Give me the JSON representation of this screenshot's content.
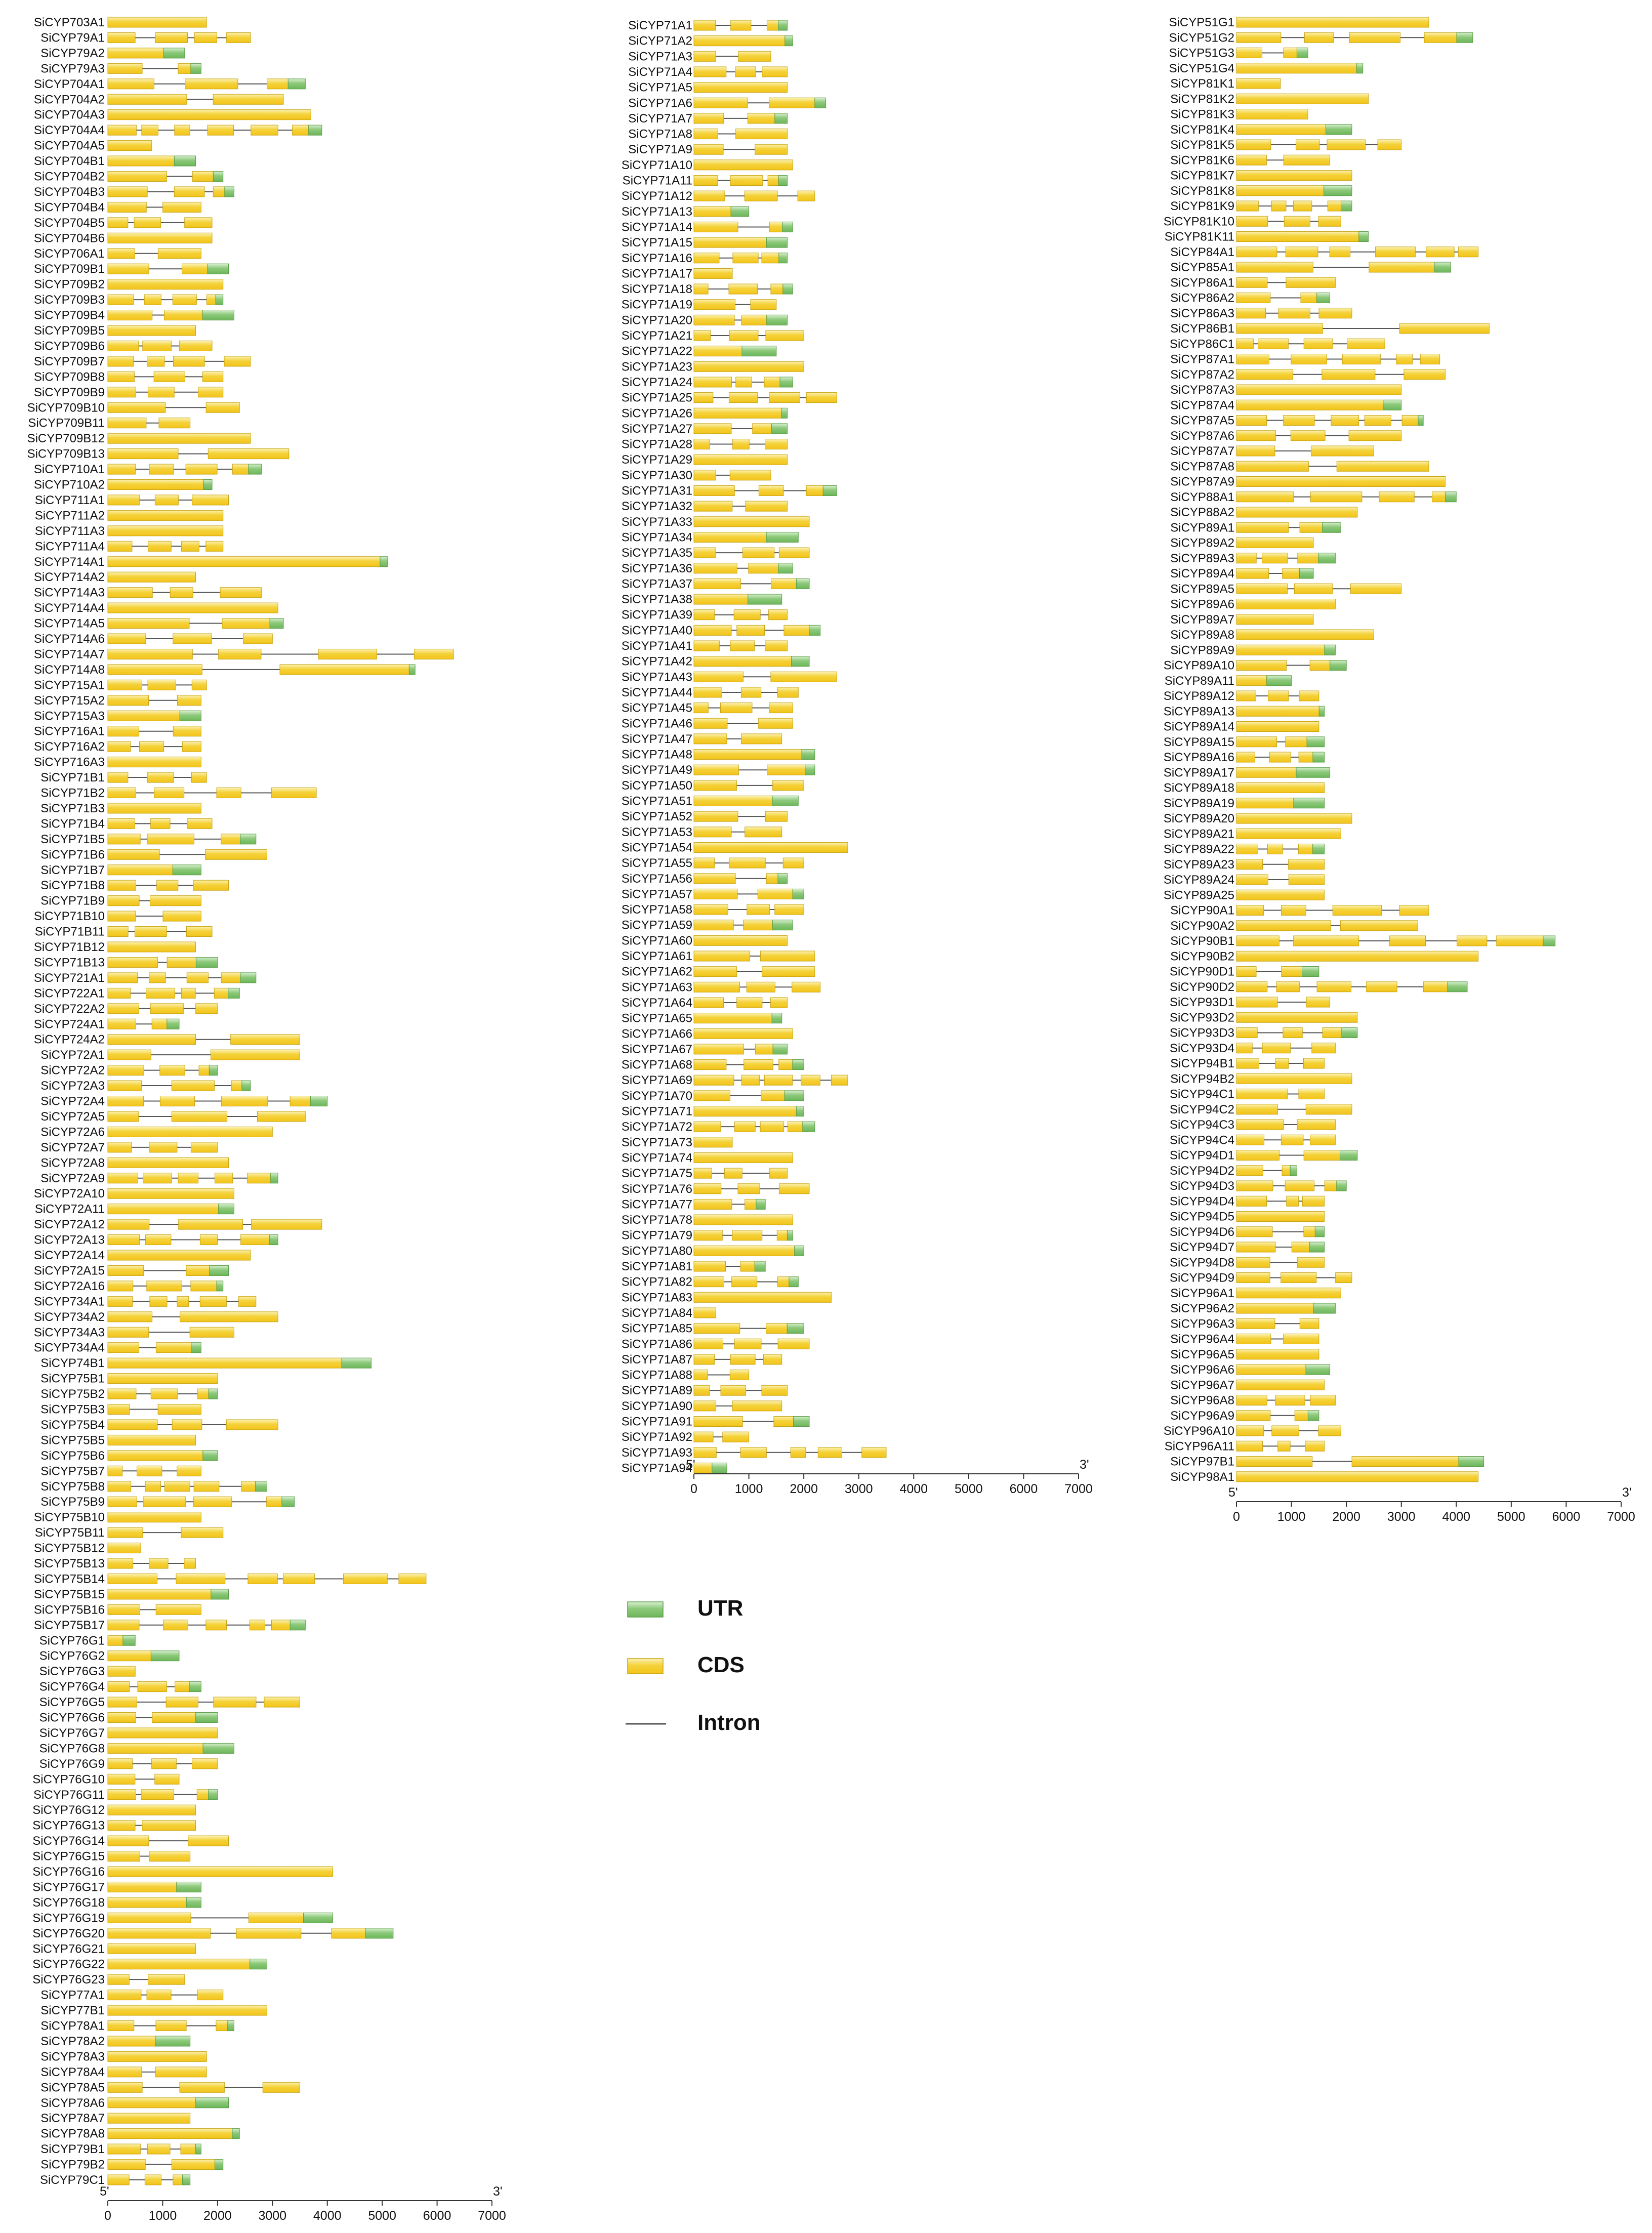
{
  "chart_data": {
    "type": "gene-structure",
    "columns": [
      {
        "genes": [
          "SiCYP703A1",
          "SiCYP79A1",
          "SiCYP79A2",
          "SiCYP79A3",
          "SiCYP704A1",
          "SiCYP704A2",
          "SiCYP704A3",
          "SiCYP704A4",
          "SiCYP704A5",
          "SiCYP704B1",
          "SiCYP704B2",
          "SiCYP704B3",
          "SiCYP704B4",
          "SiCYP704B5",
          "SiCYP704B6",
          "SiCYP706A1",
          "SiCYP709B1",
          "SiCYP709B2",
          "SiCYP709B3",
          "SiCYP709B4",
          "SiCYP709B5",
          "SiCYP709B6",
          "SiCYP709B7",
          "SiCYP709B8",
          "SiCYP709B9",
          "SiCYP709B10",
          "SiCYP709B11",
          "SiCYP709B12",
          "SiCYP709B13",
          "SiCYP710A1",
          "SiCYP710A2",
          "SiCYP711A1",
          "SiCYP711A2",
          "SiCYP711A3",
          "SiCYP711A4",
          "SiCYP714A1",
          "SiCYP714A2",
          "SiCYP714A3",
          "SiCYP714A4",
          "SiCYP714A5",
          "SiCYP714A6",
          "SiCYP714A7",
          "SiCYP714A8",
          "SiCYP715A1",
          "SiCYP715A2",
          "SiCYP715A3",
          "SiCYP716A1",
          "SiCYP716A2",
          "SiCYP716A3",
          "SiCYP71B1",
          "SiCYP71B2",
          "SiCYP71B3",
          "SiCYP71B4",
          "SiCYP71B5",
          "SiCYP71B6",
          "SiCYP71B7",
          "SiCYP71B8",
          "SiCYP71B9",
          "SiCYP71B10",
          "SiCYP71B11",
          "SiCYP71B12",
          "SiCYP71B13",
          "SiCYP721A1",
          "SiCYP722A1",
          "SiCYP722A2",
          "SiCYP724A1",
          "SiCYP724A2",
          "SiCYP72A1",
          "SiCYP72A2",
          "SiCYP72A3",
          "SiCYP72A4",
          "SiCYP72A5",
          "SiCYP72A6",
          "SiCYP72A7",
          "SiCYP72A8",
          "SiCYP72A9",
          "SiCYP72A10",
          "SiCYP72A11",
          "SiCYP72A12",
          "SiCYP72A13",
          "SiCYP72A14",
          "SiCYP72A15",
          "SiCYP72A16",
          "SiCYP734A1",
          "SiCYP734A2",
          "SiCYP734A3",
          "SiCYP734A4",
          "SiCYP74B1",
          "SiCYP75B1",
          "SiCYP75B2",
          "SiCYP75B3",
          "SiCYP75B4",
          "SiCYP75B5",
          "SiCYP75B6",
          "SiCYP75B7",
          "SiCYP75B8",
          "SiCYP75B9",
          "SiCYP75B10",
          "SiCYP75B11",
          "SiCYP75B12",
          "SiCYP75B13",
          "SiCYP75B14",
          "SiCYP75B15",
          "SiCYP75B16",
          "SiCYP75B17",
          "SiCYP76G1",
          "SiCYP76G2",
          "SiCYP76G3",
          "SiCYP76G4",
          "SiCYP76G5",
          "SiCYP76G6",
          "SiCYP76G7",
          "SiCYP76G8",
          "SiCYP76G9",
          "SiCYP76G10",
          "SiCYP76G11",
          "SiCYP76G12",
          "SiCYP76G13",
          "SiCYP76G14",
          "SiCYP76G15",
          "SiCYP76G16",
          "SiCYP76G17",
          "SiCYP76G18",
          "SiCYP76G19",
          "SiCYP76G20",
          "SiCYP76G21",
          "SiCYP76G22",
          "SiCYP76G23",
          "SiCYP77A1",
          "SiCYP77B1",
          "SiCYP78A1",
          "SiCYP78A2",
          "SiCYP78A3",
          "SiCYP78A4",
          "SiCYP78A5",
          "SiCYP78A6",
          "SiCYP78A7",
          "SiCYP78A8",
          "SiCYP79B1",
          "SiCYP79B2",
          "SiCYP79C1"
        ],
        "lengths": [
          1800,
          2600,
          1400,
          1700,
          3600,
          3200,
          3700,
          3900,
          800,
          1600,
          2100,
          2300,
          1700,
          1900,
          1900,
          1700,
          2200,
          2100,
          2100,
          2300,
          1600,
          1900,
          2600,
          2100,
          2100,
          2400,
          1500,
          2600,
          3300,
          2800,
          1900,
          2200,
          2100,
          2100,
          2100,
          5100,
          1600,
          2800,
          3100,
          3200,
          3000,
          6300,
          5600,
          1800,
          1700,
          1700,
          1700,
          1700,
          1700,
          1800,
          3800,
          1700,
          1900,
          2700,
          2900,
          1700,
          2200,
          1700,
          1700,
          1900,
          1600,
          2000,
          2700,
          2400,
          2000,
          1300,
          3500,
          3500,
          2000,
          2600,
          4000,
          3600,
          3000,
          2000,
          2200,
          3100,
          2300,
          2300,
          3900,
          3100,
          2600,
          2200,
          2100,
          2700,
          3100,
          2300,
          1700,
          4800,
          2000,
          2000,
          1700,
          3100,
          1600,
          2000,
          1700,
          2900,
          3400,
          1700,
          2100,
          600,
          1600,
          5800,
          2200,
          1700,
          3600,
          500,
          1300,
          500,
          1700,
          3500,
          2000,
          2000,
          2300,
          2000,
          1300,
          2000,
          1600,
          1600,
          2200,
          1500,
          4100,
          1700,
          1700,
          4100,
          5200,
          1600,
          2900,
          1400,
          2100,
          2900,
          2300,
          1500,
          1800,
          1800,
          3500,
          2200,
          1500,
          2400,
          1700,
          2100,
          1500
        ],
        "scale": {
          "ticks": [
            0,
            1000,
            2000,
            3000,
            4000,
            5000,
            6000,
            7000
          ],
          "start_label": "5'",
          "end_label": "3'"
        }
      },
      {
        "genes": [
          "SiCYP71A1",
          "SiCYP71A2",
          "SiCYP71A3",
          "SiCYP71A4",
          "SiCYP71A5",
          "SiCYP71A6",
          "SiCYP71A7",
          "SiCYP71A8",
          "SiCYP71A9",
          "SiCYP71A10",
          "SiCYP71A11",
          "SiCYP71A12",
          "SiCYP71A13",
          "SiCYP71A14",
          "SiCYP71A15",
          "SiCYP71A16",
          "SiCYP71A17",
          "SiCYP71A18",
          "SiCYP71A19",
          "SiCYP71A20",
          "SiCYP71A21",
          "SiCYP71A22",
          "SiCYP71A23",
          "SiCYP71A24",
          "SiCYP71A25",
          "SiCYP71A26",
          "SiCYP71A27",
          "SiCYP71A28",
          "SiCYP71A29",
          "SiCYP71A30",
          "SiCYP71A31",
          "SiCYP71A32",
          "SiCYP71A33",
          "SiCYP71A34",
          "SiCYP71A35",
          "SiCYP71A36",
          "SiCYP71A37",
          "SiCYP71A38",
          "SiCYP71A39",
          "SiCYP71A40",
          "SiCYP71A41",
          "SiCYP71A42",
          "SiCYP71A43",
          "SiCYP71A44",
          "SiCYP71A45",
          "SiCYP71A46",
          "SiCYP71A47",
          "SiCYP71A48",
          "SiCYP71A49",
          "SiCYP71A50",
          "SiCYP71A51",
          "SiCYP71A52",
          "SiCYP71A53",
          "SiCYP71A54",
          "SiCYP71A55",
          "SiCYP71A56",
          "SiCYP71A57",
          "SiCYP71A58",
          "SiCYP71A59",
          "SiCYP71A60",
          "SiCYP71A61",
          "SiCYP71A62",
          "SiCYP71A63",
          "SiCYP71A64",
          "SiCYP71A65",
          "SiCYP71A66",
          "SiCYP71A67",
          "SiCYP71A68",
          "SiCYP71A69",
          "SiCYP71A70",
          "SiCYP71A71",
          "SiCYP71A72",
          "SiCYP71A73",
          "SiCYP71A74",
          "SiCYP71A75",
          "SiCYP71A76",
          "SiCYP71A77",
          "SiCYP71A78",
          "SiCYP71A79",
          "SiCYP71A80",
          "SiCYP71A81",
          "SiCYP71A82",
          "SiCYP71A83",
          "SiCYP71A84",
          "SiCYP71A85",
          "SiCYP71A86",
          "SiCYP71A87",
          "SiCYP71A88",
          "SiCYP71A89",
          "SiCYP71A90",
          "SiCYP71A91",
          "SiCYP71A92",
          "SiCYP71A93",
          "SiCYP71A94"
        ],
        "lengths": [
          1700,
          1800,
          1400,
          1700,
          1700,
          2400,
          1700,
          1700,
          1700,
          1800,
          1700,
          2200,
          1000,
          1800,
          1700,
          1700,
          700,
          1800,
          1500,
          1700,
          2000,
          1500,
          2000,
          1800,
          2600,
          1700,
          1700,
          1700,
          1700,
          1400,
          2600,
          1700,
          2100,
          1900,
          2100,
          1800,
          2100,
          1600,
          1700,
          2300,
          1700,
          2100,
          2600,
          1900,
          1800,
          1800,
          1600,
          2200,
          2200,
          2000,
          1900,
          1700,
          1600,
          2800,
          2000,
          1700,
          2000,
          2000,
          1800,
          1700,
          2200,
          2200,
          2300,
          1700,
          1600,
          1800,
          1700,
          2000,
          2800,
          2000,
          2000,
          2200,
          700,
          1800,
          1700,
          2100,
          1300,
          1800,
          1800,
          2000,
          1300,
          1900,
          2500,
          400,
          2000,
          2100,
          1600,
          1000,
          1700,
          1600,
          2100,
          1000,
          3500,
          600
        ],
        "scale": {
          "ticks": [
            0,
            1000,
            2000,
            3000,
            4000,
            5000,
            6000,
            7000
          ],
          "start_label": "5'",
          "end_label": "3'"
        }
      },
      {
        "genes": [
          "SiCYP51G1",
          "SiCYP51G2",
          "SiCYP51G3",
          "SiCYP51G4",
          "SiCYP81K1",
          "SiCYP81K2",
          "SiCYP81K3",
          "SiCYP81K4",
          "SiCYP81K5",
          "SiCYP81K6",
          "SiCYP81K7",
          "SiCYP81K8",
          "SiCYP81K9",
          "SiCYP81K10",
          "SiCYP81K11",
          "SiCYP84A1",
          "SiCYP85A1",
          "SiCYP86A1",
          "SiCYP86A2",
          "SiCYP86A3",
          "SiCYP86B1",
          "SiCYP86C1",
          "SiCYP87A1",
          "SiCYP87A2",
          "SiCYP87A3",
          "SiCYP87A4",
          "SiCYP87A5",
          "SiCYP87A6",
          "SiCYP87A7",
          "SiCYP87A8",
          "SiCYP87A9",
          "SiCYP88A1",
          "SiCYP88A2",
          "SiCYP89A1",
          "SiCYP89A2",
          "SiCYP89A3",
          "SiCYP89A4",
          "SiCYP89A5",
          "SiCYP89A6",
          "SiCYP89A7",
          "SiCYP89A8",
          "SiCYP89A9",
          "SiCYP89A10",
          "SiCYP89A11",
          "SiCYP89A12",
          "SiCYP89A13",
          "SiCYP89A14",
          "SiCYP89A15",
          "SiCYP89A16",
          "SiCYP89A17",
          "SiCYP89A18",
          "SiCYP89A19",
          "SiCYP89A20",
          "SiCYP89A21",
          "SiCYP89A22",
          "SiCYP89A23",
          "SiCYP89A24",
          "SiCYP89A25",
          "SiCYP90A1",
          "SiCYP90A2",
          "SiCYP90B1",
          "SiCYP90B2",
          "SiCYP90D1",
          "SiCYP90D2",
          "SiCYP93D1",
          "SiCYP93D2",
          "SiCYP93D3",
          "SiCYP93D4",
          "SiCYP94B1",
          "SiCYP94B2",
          "SiCYP94C1",
          "SiCYP94C2",
          "SiCYP94C3",
          "SiCYP94C4",
          "SiCYP94D1",
          "SiCYP94D2",
          "SiCYP94D3",
          "SiCYP94D4",
          "SiCYP94D5",
          "SiCYP94D6",
          "SiCYP94D7",
          "SiCYP94D8",
          "SiCYP94D9",
          "SiCYP96A1",
          "SiCYP96A2",
          "SiCYP96A3",
          "SiCYP96A4",
          "SiCYP96A5",
          "SiCYP96A6",
          "SiCYP96A7",
          "SiCYP96A8",
          "SiCYP96A9",
          "SiCYP96A10",
          "SiCYP96A11",
          "SiCYP97B1",
          "SiCYP98A1"
        ],
        "lengths": [
          3500,
          4300,
          1300,
          2300,
          800,
          2400,
          1300,
          2100,
          3000,
          1700,
          2100,
          2100,
          2100,
          1900,
          2400,
          4400,
          3900,
          1800,
          1700,
          2100,
          4600,
          2700,
          3700,
          3800,
          3000,
          3000,
          3400,
          3000,
          2500,
          3500,
          3800,
          4000,
          2200,
          1900,
          1400,
          1800,
          1400,
          3000,
          1800,
          1400,
          2500,
          1800,
          2000,
          1000,
          1500,
          1600,
          1500,
          1600,
          1600,
          1700,
          1600,
          1600,
          2100,
          1900,
          1600,
          1600,
          1600,
          1600,
          3500,
          3300,
          5800,
          4400,
          1500,
          4200,
          1700,
          2200,
          2200,
          1800,
          1600,
          2100,
          1600,
          2100,
          1800,
          1800,
          2200,
          1100,
          2000,
          1600,
          1600,
          1600,
          1600,
          1600,
          2100,
          1900,
          1800,
          1500,
          1500,
          1500,
          1700,
          1600,
          1800,
          1500,
          1900,
          1600,
          4500,
          4400
        ],
        "scale": {
          "ticks": [
            0,
            1000,
            2000,
            3000,
            4000,
            5000,
            6000,
            7000
          ],
          "start_label": "5'",
          "end_label": "3'"
        }
      }
    ],
    "legend": [
      {
        "label": "UTR",
        "color": "#8cc97a"
      },
      {
        "label": "CDS",
        "color": "#f5d23a"
      },
      {
        "label": "Intron",
        "color": "#555555"
      }
    ],
    "colors": {
      "utr": "#8cc97a",
      "cds": "#f5d23a",
      "intron": "#555555"
    }
  }
}
